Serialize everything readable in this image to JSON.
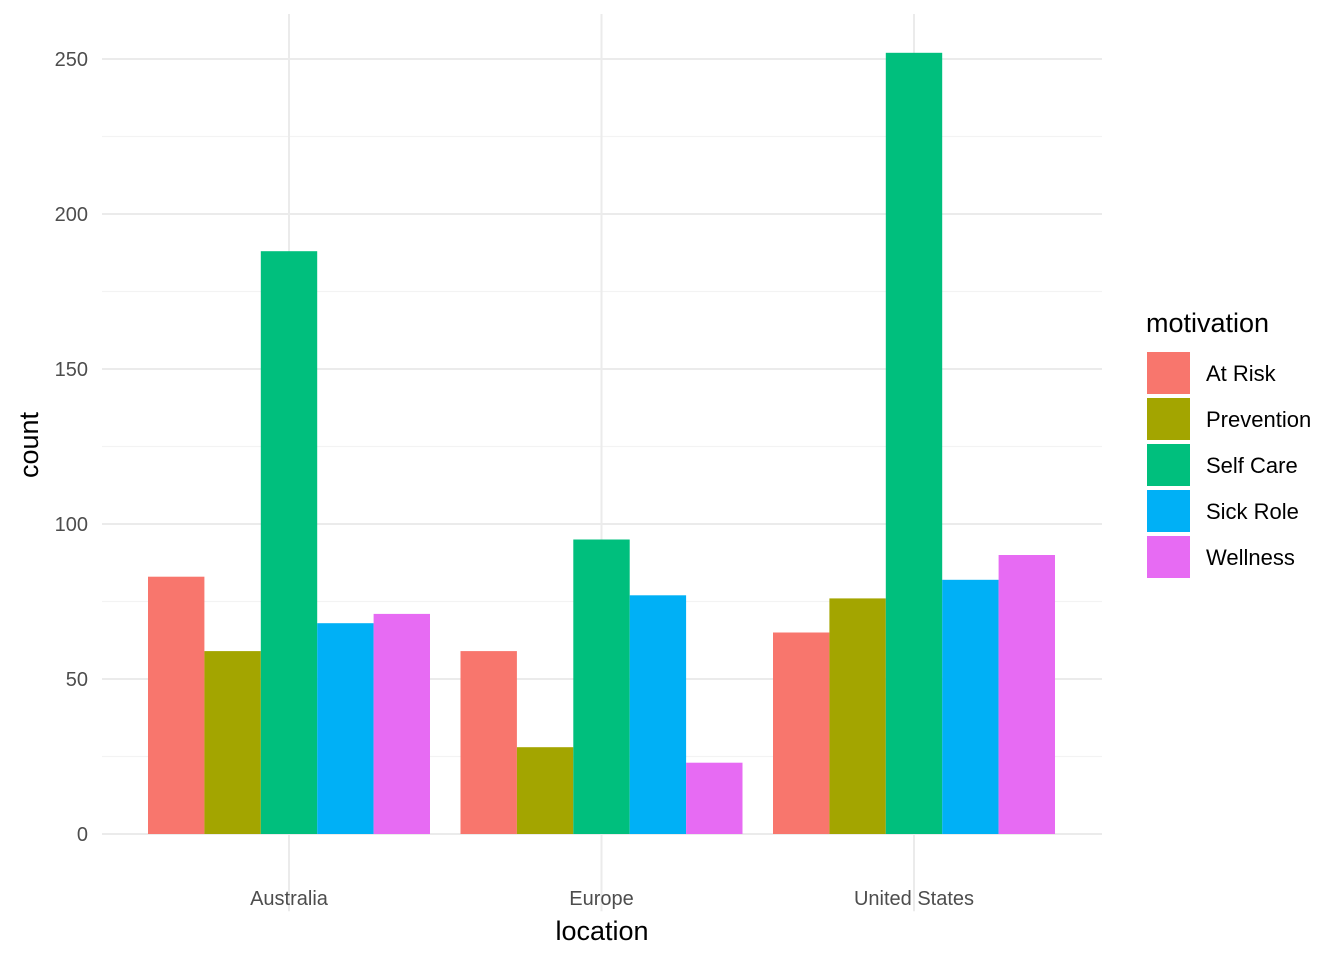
{
  "chart_data": {
    "type": "bar",
    "xlabel": "location",
    "ylabel": "count",
    "categories": [
      "Australia",
      "Europe",
      "United States"
    ],
    "ylim": [
      0,
      260
    ],
    "yticks": [
      0,
      50,
      100,
      150,
      200,
      250
    ],
    "grid": true,
    "legend": {
      "title": "motivation",
      "position": "right"
    },
    "series": [
      {
        "name": "At Risk",
        "color": "#F8766D",
        "values": [
          83,
          59,
          65
        ]
      },
      {
        "name": "Prevention",
        "color": "#A3A500",
        "values": [
          59,
          28,
          76
        ]
      },
      {
        "name": "Self Care",
        "color": "#00BF7D",
        "values": [
          188,
          95,
          252
        ]
      },
      {
        "name": "Sick Role",
        "color": "#00B0F6",
        "values": [
          68,
          77,
          82
        ]
      },
      {
        "name": "Wellness",
        "color": "#E76BF3",
        "values": [
          71,
          23,
          90
        ]
      }
    ]
  }
}
